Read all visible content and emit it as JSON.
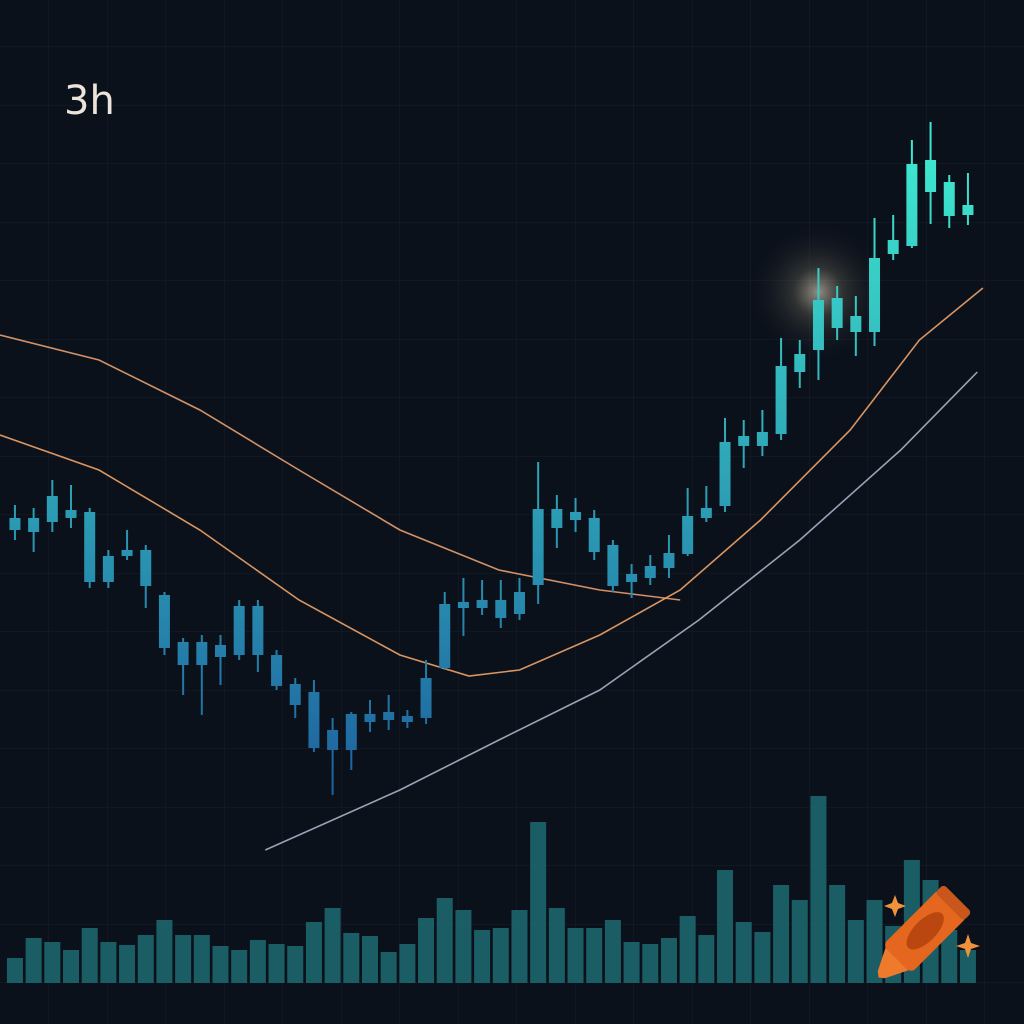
{
  "chart_data": {
    "type": "candlestick",
    "title": "3h",
    "xlim": [
      -0.8,
      54
    ],
    "ylim": [
      0,
      100
    ],
    "volume_ylim": [
      0,
      300
    ],
    "colors": [
      "#1d5f9e",
      "#3ee8cf"
    ],
    "volume_color": "#1f6b72",
    "open": [
      47,
      46.8,
      47.8,
      48.2,
      41.8,
      41.8,
      44.4,
      41.4,
      35.2,
      33.5,
      33.5,
      34.3,
      34.5,
      34.5,
      31.4,
      29.5,
      25.2,
      25,
      25,
      27.8,
      28,
      27.8,
      28.2,
      33.2,
      39.2,
      39.2,
      38.2,
      38.6,
      41.5,
      47.2,
      48,
      44.8,
      41.4,
      41.8,
      42.2,
      43.2,
      44.6,
      48.2,
      49.4,
      55.4,
      55.4,
      56.6,
      62.8,
      65,
      67.2,
      66.8,
      66.8,
      74.6,
      75.4,
      80.8,
      78.4,
      78.5
    ],
    "close": [
      48.2,
      48.2,
      50.4,
      49,
      48.8,
      44.4,
      45,
      45,
      40.5,
      35.8,
      35.8,
      35.5,
      39.4,
      39.4,
      34.5,
      31.6,
      30.8,
      27,
      28.6,
      28.6,
      28.8,
      28.4,
      32.2,
      39.6,
      39.8,
      40,
      40,
      40.8,
      49.1,
      49.1,
      48.8,
      48.2,
      45.5,
      42.6,
      43.4,
      44.7,
      48.4,
      49.2,
      55.8,
      56.4,
      56.8,
      63.4,
      64.6,
      70,
      70.2,
      68.4,
      74.2,
      76,
      83.6,
      84,
      81.8,
      79.5
    ],
    "high": [
      49.5,
      49.2,
      52,
      51.5,
      49.2,
      45,
      47,
      45.5,
      40.8,
      36.2,
      36.5,
      36.5,
      40,
      40,
      35,
      32.2,
      32,
      28.2,
      28.8,
      30,
      30.5,
      29,
      34,
      40.8,
      42.2,
      42,
      42,
      42.2,
      53.8,
      50.5,
      50.2,
      49,
      46,
      43.6,
      44.5,
      46.5,
      51.2,
      51.4,
      58.2,
      58,
      59,
      66.2,
      66,
      73.2,
      71.4,
      70.4,
      78.2,
      78.5,
      86,
      87.8,
      82.5,
      82.7
    ],
    "low": [
      46,
      44.8,
      46.8,
      47.2,
      41.2,
      41.2,
      44,
      39.2,
      34.5,
      30.5,
      28.5,
      31.5,
      34,
      32.8,
      31,
      28.2,
      24.8,
      20.5,
      23,
      26.8,
      27,
      27.2,
      27.6,
      33,
      36.4,
      38.5,
      37.2,
      38,
      39.6,
      45.2,
      46.8,
      44,
      40.8,
      40.2,
      41.5,
      42.2,
      44.4,
      47.8,
      48.8,
      53.2,
      54.4,
      56,
      61.2,
      62,
      66,
      64.4,
      65.4,
      74,
      75.2,
      77.6,
      77.2,
      77.5
    ],
    "volume": [
      25,
      45,
      41,
      33,
      55,
      41,
      38,
      48,
      63,
      48,
      48,
      37,
      33,
      43,
      39,
      37,
      61,
      75,
      50,
      47,
      31,
      39,
      65,
      85,
      73,
      53,
      55,
      73,
      161,
      75,
      55,
      55,
      63,
      41,
      39,
      45,
      67,
      48,
      113,
      61,
      51,
      98,
      83,
      187,
      98,
      63,
      83,
      57,
      123,
      103,
      53,
      33
    ],
    "lines": [
      {
        "color": "#e8a070",
        "x": [
          -0.8,
          4.5,
          9.9,
          15.2,
          20.6,
          25.9,
          31.3,
          35.6
        ],
        "values": [
          66.5,
          64,
          59,
          53,
          47,
          43,
          41,
          40
        ]
      },
      {
        "color": "#f0a468",
        "x": [
          -0.8,
          4.5,
          9.9,
          15.2,
          20.6,
          24.3,
          27,
          31.3,
          35.6,
          39.9,
          44.7,
          48.4,
          51.8
        ],
        "values": [
          56.5,
          53,
          47,
          40,
          34.5,
          32.4,
          33,
          36.5,
          41,
          48,
          57,
          66,
          71.2
        ]
      },
      {
        "color": "#a9b4c8",
        "x": [
          13.4,
          20.6,
          25.9,
          31.3,
          36.6,
          42,
          47.4,
          51.5
        ],
        "values": [
          15,
          21,
          26,
          31,
          38,
          46,
          55,
          62.8
        ]
      }
    ]
  }
}
